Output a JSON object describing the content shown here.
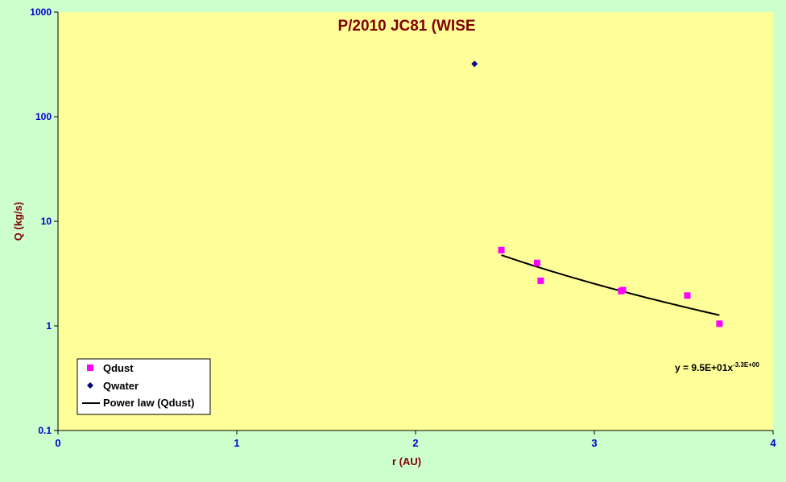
{
  "chart_data": {
    "type": "scatter",
    "title": "P/2010 JC81 (WISE",
    "xlabel": "r (AU)",
    "ylabel": "Q (kg/s)",
    "xlim": [
      0,
      4
    ],
    "ylim": [
      0.1,
      1000
    ],
    "yscale": "log",
    "grid": false,
    "legend_position": "bottom-left",
    "x_ticks": [
      "0",
      "1",
      "2",
      "3",
      "4"
    ],
    "y_ticks": [
      "0.1",
      "1",
      "10",
      "100",
      "1000"
    ],
    "series": [
      {
        "name": "Qdust",
        "marker": "square",
        "color": "#ff00ff",
        "x": [
          2.48,
          2.68,
          2.7,
          3.15,
          3.16,
          3.52,
          3.7
        ],
        "y": [
          5.3,
          4.0,
          2.7,
          2.15,
          2.2,
          1.95,
          1.05
        ]
      },
      {
        "name": "Qwater",
        "marker": "diamond",
        "color": "#000080",
        "x": [
          2.33
        ],
        "y": [
          320
        ]
      }
    ],
    "trendline": {
      "name": "Power law (Qdust)",
      "type": "power",
      "coefficient": 95,
      "exponent": -3.3,
      "x_range": [
        2.48,
        3.7
      ],
      "color": "#000000",
      "equation_main": "y = 9.5E+01x",
      "equation_exponent": "-3.3E+00"
    },
    "colors": {
      "plot_area": "#ffff99",
      "chart_area": "#ccffcc",
      "title": "#800000",
      "axis_title": "#800000",
      "tick_labels": "#0000cc"
    }
  }
}
